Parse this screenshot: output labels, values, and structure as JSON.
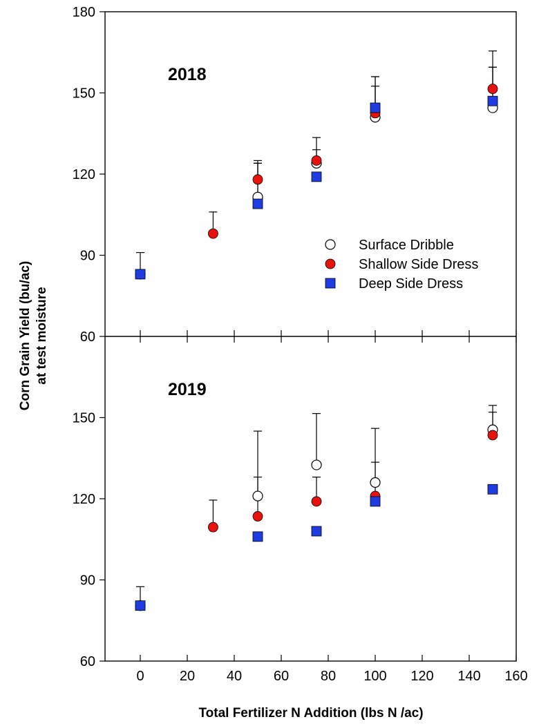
{
  "chart_data": {
    "type": "scatter",
    "title": "",
    "xlabel": "Total Fertilizer N Addition (lbs N /ac)",
    "ylabel": [
      "Corn Grain Yield (bu/ac)",
      "at test moisture"
    ],
    "xlim": [
      -15,
      160
    ],
    "xticks": [
      0,
      20,
      40,
      60,
      80,
      100,
      120,
      140,
      160
    ],
    "ylim": [
      60,
      180
    ],
    "yticks": [
      60,
      90,
      120,
      150,
      180
    ],
    "legend_position": "right-middle of top panel",
    "colors": {
      "Surface Dribble": "#ffffff",
      "Shallow Side Dress": "#e8120c",
      "Deep Side Dress": "#1e3ce0"
    },
    "legend": [
      {
        "name": "Surface Dribble",
        "marker": "circle-open"
      },
      {
        "name": "Shallow Side Dress",
        "marker": "circle-filled"
      },
      {
        "name": "Deep Side Dress",
        "marker": "square-filled"
      }
    ],
    "panels": [
      {
        "label": "2018",
        "ylim": [
          60,
          180
        ],
        "yticks": [
          60,
          90,
          120,
          150,
          180
        ],
        "series": [
          {
            "name": "Surface Dribble",
            "points": [
              {
                "x": 0,
                "y": 83,
                "err": 8
              },
              {
                "x": 50,
                "y": 111.5,
                "err": 13.5
              },
              {
                "x": 75,
                "y": 124,
                "err": 5
              },
              {
                "x": 100,
                "y": 141,
                "err": 15
              },
              {
                "x": 150,
                "y": 144.5,
                "err": 15
              }
            ]
          },
          {
            "name": "Shallow Side Dress",
            "points": [
              {
                "x": 31,
                "y": 98,
                "err": 8
              },
              {
                "x": 50,
                "y": 118,
                "err": 6
              },
              {
                "x": 75,
                "y": 125,
                "err": 8.5
              },
              {
                "x": 100,
                "y": 142.5,
                "err": 13.5
              },
              {
                "x": 150,
                "y": 151.5,
                "err": 14
              }
            ]
          },
          {
            "name": "Deep Side Dress",
            "points": [
              {
                "x": 0,
                "y": 83,
                "err": 0
              },
              {
                "x": 50,
                "y": 109,
                "err": 15
              },
              {
                "x": 75,
                "y": 119,
                "err": 0
              },
              {
                "x": 100,
                "y": 144.5,
                "err": 8
              },
              {
                "x": 150,
                "y": 147,
                "err": 12.5
              }
            ]
          }
        ]
      },
      {
        "label": "2019",
        "ylim": [
          60,
          180
        ],
        "yticks": [
          60,
          90,
          120,
          150
        ],
        "series": [
          {
            "name": "Surface Dribble",
            "points": [
              {
                "x": 0,
                "y": 80.5,
                "err": 0
              },
              {
                "x": 50,
                "y": 121,
                "err": 24
              },
              {
                "x": 75,
                "y": 132.5,
                "err": 19
              },
              {
                "x": 100,
                "y": 126,
                "err": 20
              },
              {
                "x": 150,
                "y": 145.5,
                "err": 9
              }
            ]
          },
          {
            "name": "Shallow Side Dress",
            "points": [
              {
                "x": 0,
                "y": 80.5,
                "err": 7
              },
              {
                "x": 31,
                "y": 109.5,
                "err": 10
              },
              {
                "x": 50,
                "y": 113.5,
                "err": 14.5
              },
              {
                "x": 75,
                "y": 119,
                "err": 9
              },
              {
                "x": 100,
                "y": 121,
                "err": 12.5
              },
              {
                "x": 150,
                "y": 143.5,
                "err": 8.5
              }
            ]
          },
          {
            "name": "Deep Side Dress",
            "points": [
              {
                "x": 0,
                "y": 80.5,
                "err": 0
              },
              {
                "x": 50,
                "y": 106,
                "err": 0
              },
              {
                "x": 75,
                "y": 108,
                "err": 0
              },
              {
                "x": 100,
                "y": 119,
                "err": 0
              },
              {
                "x": 150,
                "y": 123.5,
                "err": 0
              }
            ]
          }
        ]
      }
    ]
  }
}
